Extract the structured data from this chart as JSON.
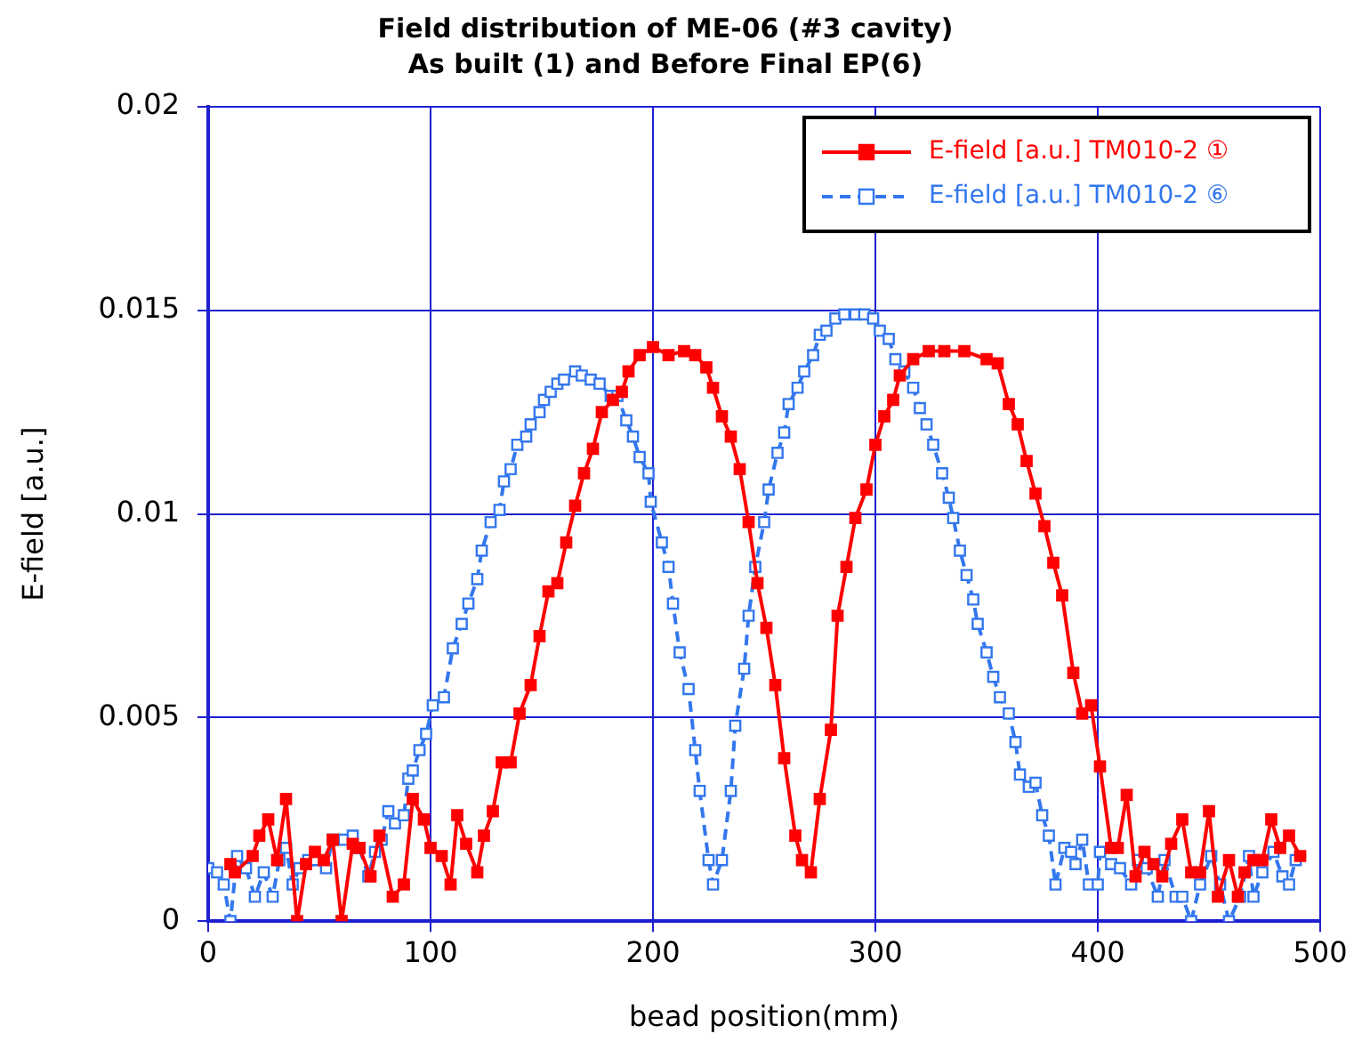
{
  "chart_data": {
    "type": "line",
    "title": "Field distribution of ME-06 (#3 cavity)",
    "subtitle": "As built (1) and Before Final EP(6)",
    "xlabel": "bead position(mm)",
    "ylabel": "E-field [a.u.]",
    "xlim": [
      0,
      500
    ],
    "xticks": [
      0,
      100,
      200,
      300,
      400,
      500
    ],
    "ylim": [
      0,
      0.02
    ],
    "yticks": [
      0,
      0.005,
      0.01,
      0.015,
      0.02
    ],
    "grid": true,
    "legend": "top right",
    "marker": "square",
    "series": [
      {
        "name": "E-field [a.u.] TM010-2 ①",
        "color": "#ff0000",
        "line_style": "solid",
        "x": [
          10,
          12,
          20,
          23,
          27,
          31,
          35,
          40,
          44,
          48,
          52,
          56,
          60,
          65,
          68,
          73,
          77,
          83,
          88,
          92,
          97,
          100,
          105,
          109,
          112,
          116,
          121,
          124,
          128,
          132,
          136,
          140,
          145,
          149,
          153,
          157,
          161,
          165,
          169,
          173,
          177,
          182,
          186,
          189,
          194,
          200,
          207,
          214,
          219,
          224,
          227,
          231,
          235,
          239,
          243,
          247,
          251,
          255,
          259,
          264,
          267,
          271,
          275,
          280,
          283,
          287,
          291,
          296,
          300,
          304,
          308,
          311,
          317,
          324,
          331,
          340,
          350,
          355,
          360,
          364,
          368,
          372,
          376,
          380,
          384,
          389,
          393,
          397,
          401,
          406,
          409,
          413,
          417,
          421,
          425,
          429,
          433,
          438,
          442,
          446,
          450,
          454,
          459,
          463,
          466,
          470,
          474,
          478,
          482,
          486,
          491
        ],
        "values": [
          0.0014,
          0.0012,
          0.0016,
          0.0021,
          0.0025,
          0.0015,
          0.003,
          0,
          0.0014,
          0.0017,
          0.0015,
          0.002,
          0,
          0.0019,
          0.0018,
          0.0011,
          0.0021,
          0.0006,
          0.0009,
          0.003,
          0.0025,
          0.0018,
          0.0016,
          0.0009,
          0.0026,
          0.0019,
          0.0012,
          0.0021,
          0.0027,
          0.0039,
          0.0039,
          0.0051,
          0.0058,
          0.007,
          0.0081,
          0.0083,
          0.0093,
          0.0102,
          0.011,
          0.0116,
          0.0125,
          0.0128,
          0.013,
          0.0135,
          0.0139,
          0.0141,
          0.0139,
          0.014,
          0.0139,
          0.0136,
          0.0131,
          0.0124,
          0.0119,
          0.0111,
          0.0098,
          0.0083,
          0.0072,
          0.0058,
          0.004,
          0.0021,
          0.0015,
          0.0012,
          0.003,
          0.0047,
          0.0075,
          0.0087,
          0.0099,
          0.0106,
          0.0117,
          0.0124,
          0.0128,
          0.0134,
          0.0138,
          0.014,
          0.014,
          0.014,
          0.0138,
          0.0137,
          0.0127,
          0.0122,
          0.0113,
          0.0105,
          0.0097,
          0.0088,
          0.008,
          0.0061,
          0.0051,
          0.0053,
          0.0038,
          0.0018,
          0.0018,
          0.0031,
          0.0011,
          0.0017,
          0.0014,
          0.0011,
          0.0019,
          0.0025,
          0.0012,
          0.0012,
          0.0027,
          0.0006,
          0.0015,
          0.0006,
          0.0012,
          0.0015,
          0.0015,
          0.0025,
          0.0018,
          0.0021,
          0.0016
        ]
      },
      {
        "name": "E-field [a.u.] TM010-2 ⑥",
        "color": "#3377ee",
        "line_style": "dashed",
        "x": [
          0,
          4,
          7,
          10,
          13,
          17,
          21,
          25,
          29,
          32,
          35,
          38,
          41,
          45,
          48,
          53,
          56,
          61,
          65,
          68,
          72,
          75,
          78,
          81,
          84,
          88,
          90,
          92,
          95,
          98,
          101,
          106,
          110,
          114,
          117,
          121,
          123,
          127,
          131,
          133,
          136,
          139,
          143,
          145,
          149,
          151,
          154,
          157,
          160,
          165,
          168,
          172,
          176,
          181,
          184,
          188,
          191,
          194,
          198,
          199,
          204,
          207,
          209,
          212,
          216,
          219,
          221,
          225,
          227,
          231,
          235,
          237,
          241,
          243,
          246,
          250,
          252,
          256,
          259,
          261,
          265,
          268,
          272,
          275,
          278,
          282,
          286,
          291,
          295,
          299,
          302,
          306,
          309,
          313,
          317,
          320,
          323,
          326,
          330,
          333,
          335,
          338,
          341,
          344,
          346,
          350,
          353,
          356,
          360,
          363,
          365,
          369,
          372,
          375,
          378,
          381,
          385,
          388,
          390,
          393,
          396,
          400,
          401,
          406,
          410,
          415,
          418,
          422,
          427,
          430,
          435,
          438,
          442,
          446,
          451,
          455,
          459,
          464,
          468,
          470,
          474,
          479,
          483,
          486,
          489
        ],
        "values": [
          0.0013,
          0.0012,
          0.0009,
          0,
          0.0016,
          0.0013,
          0.0006,
          0.0012,
          0.0006,
          0.0015,
          0.0018,
          0.0009,
          0.0013,
          0.0015,
          0.0015,
          0.0013,
          0.002,
          0.002,
          0.0021,
          0.0018,
          0.0011,
          0.0017,
          0.002,
          0.0027,
          0.0024,
          0.0026,
          0.0035,
          0.0037,
          0.0042,
          0.0046,
          0.0053,
          0.0055,
          0.0067,
          0.0073,
          0.0078,
          0.0084,
          0.0091,
          0.0098,
          0.0101,
          0.0108,
          0.0111,
          0.0117,
          0.0119,
          0.0122,
          0.0125,
          0.0128,
          0.013,
          0.0132,
          0.0133,
          0.0135,
          0.0134,
          0.0133,
          0.0132,
          0.0129,
          0.0129,
          0.0123,
          0.0119,
          0.0114,
          0.011,
          0.0103,
          0.0093,
          0.0087,
          0.0078,
          0.0066,
          0.0057,
          0.0042,
          0.0032,
          0.0015,
          0.0009,
          0.0015,
          0.0032,
          0.0048,
          0.0062,
          0.0075,
          0.0087,
          0.0098,
          0.0106,
          0.0115,
          0.012,
          0.0127,
          0.0131,
          0.0135,
          0.0139,
          0.0144,
          0.0145,
          0.0148,
          0.0149,
          0.0149,
          0.0149,
          0.0148,
          0.0145,
          0.0143,
          0.0138,
          0.0135,
          0.0131,
          0.0126,
          0.0122,
          0.0117,
          0.011,
          0.0104,
          0.0099,
          0.0091,
          0.0085,
          0.0079,
          0.0073,
          0.0066,
          0.006,
          0.0055,
          0.0051,
          0.0044,
          0.0036,
          0.0033,
          0.0034,
          0.0026,
          0.0021,
          0.0009,
          0.0018,
          0.0017,
          0.0014,
          0.002,
          0.0009,
          0.0009,
          0.0017,
          0.0014,
          0.0013,
          0.0009,
          0.0015,
          0.0013,
          0.0006,
          0.0015,
          0.0006,
          0.0006,
          0,
          0.0009,
          0.0016,
          0.0009,
          0,
          0.0006,
          0.0016,
          0.0006,
          0.0012,
          0.0017,
          0.0011,
          0.0009,
          0.0015
        ]
      }
    ]
  }
}
